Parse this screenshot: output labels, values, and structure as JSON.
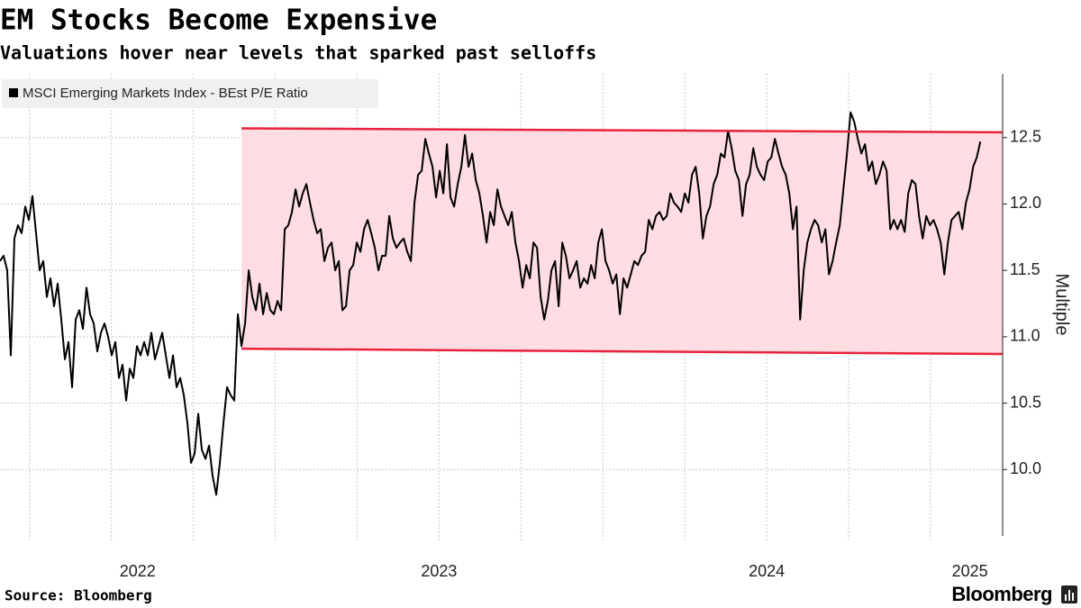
{
  "chart_data": {
    "type": "line",
    "title": "EM Stocks Become Expensive",
    "subtitle": "Valuations hover near levels that sparked past selloffs",
    "source": "Source: Bloomberg",
    "brand": "Bloomberg",
    "ylabel": "Multiple",
    "x": [
      2022.16,
      2022.171,
      2022.182,
      2022.193,
      2022.204,
      2022.215,
      2022.226,
      2022.237,
      2022.248,
      2022.259,
      2022.27,
      2022.281,
      2022.292,
      2022.303,
      2022.314,
      2022.325,
      2022.336,
      2022.347,
      2022.358,
      2022.369,
      2022.38,
      2022.391,
      2022.402,
      2022.413,
      2022.424,
      2022.435,
      2022.446,
      2022.457,
      2022.468,
      2022.479,
      2022.49,
      2022.501,
      2022.512,
      2022.523,
      2022.534,
      2022.545,
      2022.556,
      2022.567,
      2022.578,
      2022.589,
      2022.6,
      2022.611,
      2022.622,
      2022.633,
      2022.644,
      2022.655,
      2022.666,
      2022.677,
      2022.688,
      2022.699,
      2022.71,
      2022.721,
      2022.732,
      2022.743,
      2022.754,
      2022.765,
      2022.776,
      2022.787,
      2022.798,
      2022.809,
      2022.82,
      2022.831,
      2022.842,
      2022.853,
      2022.864,
      2022.875,
      2022.886,
      2022.897,
      2022.908,
      2022.919,
      2022.93,
      2022.941,
      2022.952,
      2022.963,
      2022.974,
      2022.985,
      2022.996,
      2023.007,
      2023.018,
      2023.029,
      2023.04,
      2023.051,
      2023.062,
      2023.073,
      2023.084,
      2023.095,
      2023.106,
      2023.117,
      2023.128,
      2023.139,
      2023.15,
      2023.161,
      2023.172,
      2023.183,
      2023.194,
      2023.205,
      2023.216,
      2023.227,
      2023.238,
      2023.249,
      2023.26,
      2023.271,
      2023.282,
      2023.293,
      2023.304,
      2023.315,
      2023.326,
      2023.337,
      2023.348,
      2023.359,
      2023.37,
      2023.381,
      2023.392,
      2023.403,
      2023.414,
      2023.425,
      2023.436,
      2023.447,
      2023.458,
      2023.469,
      2023.48,
      2023.491,
      2023.502,
      2023.513,
      2023.524,
      2023.535,
      2023.546,
      2023.557,
      2023.568,
      2023.579,
      2023.59,
      2023.601,
      2023.612,
      2023.623,
      2023.634,
      2023.645,
      2023.656,
      2023.667,
      2023.678,
      2023.689,
      2023.7,
      2023.711,
      2023.722,
      2023.733,
      2023.744,
      2023.755,
      2023.766,
      2023.777,
      2023.788,
      2023.799,
      2023.81,
      2023.821,
      2023.832,
      2023.843,
      2023.854,
      2023.865,
      2023.876,
      2023.887,
      2023.898,
      2023.909,
      2023.92,
      2023.931,
      2023.942,
      2023.953,
      2023.964,
      2023.975,
      2023.986,
      2023.997,
      2024.008,
      2024.019,
      2024.03,
      2024.041,
      2024.052,
      2024.063,
      2024.074,
      2024.085,
      2024.096,
      2024.107,
      2024.118,
      2024.129,
      2024.14,
      2024.151,
      2024.162,
      2024.173,
      2024.184,
      2024.195,
      2024.206,
      2024.217,
      2024.228,
      2024.239,
      2024.25,
      2024.261,
      2024.272,
      2024.283,
      2024.294,
      2024.305,
      2024.316,
      2024.327,
      2024.338,
      2024.349,
      2024.36,
      2024.371,
      2024.382,
      2024.393,
      2024.404,
      2024.415,
      2024.426,
      2024.437,
      2024.448,
      2024.459,
      2024.47,
      2024.481,
      2024.492,
      2024.503,
      2024.514,
      2024.525,
      2024.536,
      2024.547,
      2024.558,
      2024.569,
      2024.58,
      2024.591,
      2024.602,
      2024.613,
      2024.624,
      2024.635,
      2024.646,
      2024.657,
      2024.668,
      2024.679,
      2024.69,
      2024.701,
      2024.712,
      2024.723,
      2024.734,
      2024.745,
      2024.756,
      2024.767,
      2024.778,
      2024.789,
      2024.8,
      2024.811,
      2024.822,
      2024.833,
      2024.844,
      2024.855,
      2024.866,
      2024.877,
      2024.888,
      2024.899,
      2024.91,
      2024.921,
      2024.932,
      2024.943,
      2024.954,
      2024.965,
      2024.976,
      2024.987,
      2024.998,
      2025.009,
      2025.02,
      2025.031,
      2025.042,
      2025.053,
      2025.064,
      2025.075,
      2025.086,
      2025.097,
      2025.108,
      2025.119,
      2025.13,
      2025.141,
      2025.152
    ],
    "series": [
      {
        "name": "MSCI Emerging Markets Index - BEst P/E Ratio",
        "color": "#000000",
        "values": [
          11.57,
          11.61,
          11.5,
          10.86,
          11.74,
          11.84,
          11.78,
          11.98,
          11.88,
          12.06,
          11.78,
          11.5,
          11.57,
          11.3,
          11.44,
          11.23,
          11.4,
          11.13,
          10.83,
          10.96,
          10.62,
          11.13,
          11.2,
          11.06,
          11.37,
          11.17,
          11.1,
          10.89,
          11.03,
          11.1,
          11.0,
          10.86,
          10.96,
          10.69,
          10.79,
          10.52,
          10.76,
          10.69,
          10.93,
          10.86,
          10.96,
          10.86,
          11.03,
          10.83,
          10.93,
          11.03,
          10.86,
          10.69,
          10.86,
          10.62,
          10.69,
          10.56,
          10.35,
          10.05,
          10.12,
          10.42,
          10.15,
          10.08,
          10.18,
          9.95,
          9.81,
          10.05,
          10.35,
          10.62,
          10.56,
          10.52,
          11.17,
          10.93,
          11.1,
          11.5,
          11.3,
          11.2,
          11.4,
          11.17,
          11.33,
          11.2,
          11.17,
          11.27,
          11.2,
          11.81,
          11.84,
          11.94,
          12.11,
          11.98,
          12.08,
          12.15,
          12.01,
          11.88,
          11.78,
          11.81,
          11.57,
          11.67,
          11.71,
          11.5,
          11.57,
          11.2,
          11.23,
          11.5,
          11.54,
          11.71,
          11.64,
          11.81,
          11.88,
          11.78,
          11.67,
          11.5,
          11.61,
          11.61,
          11.91,
          11.74,
          11.67,
          11.71,
          11.74,
          11.64,
          11.57,
          12.01,
          12.22,
          12.25,
          12.49,
          12.38,
          12.28,
          12.05,
          12.25,
          12.08,
          12.45,
          12.05,
          11.98,
          12.15,
          12.28,
          12.52,
          12.28,
          12.38,
          12.18,
          12.08,
          11.91,
          11.71,
          11.94,
          11.84,
          12.11,
          11.98,
          11.91,
          11.84,
          11.94,
          11.71,
          11.57,
          11.37,
          11.54,
          11.44,
          11.71,
          11.67,
          11.3,
          11.13,
          11.27,
          11.5,
          11.57,
          11.23,
          11.71,
          11.61,
          11.44,
          11.5,
          11.57,
          11.37,
          11.44,
          11.4,
          11.54,
          11.44,
          11.71,
          11.81,
          11.57,
          11.5,
          11.4,
          11.47,
          11.17,
          11.44,
          11.37,
          11.47,
          11.57,
          11.54,
          11.61,
          11.64,
          11.88,
          11.81,
          11.91,
          11.94,
          11.88,
          11.91,
          12.08,
          12.01,
          11.98,
          11.94,
          12.08,
          12.01,
          12.22,
          12.28,
          12.08,
          11.74,
          11.91,
          11.98,
          12.15,
          12.22,
          12.38,
          12.35,
          12.55,
          12.42,
          12.25,
          12.18,
          11.91,
          12.15,
          12.22,
          12.42,
          12.28,
          12.22,
          12.18,
          12.32,
          12.35,
          12.49,
          12.38,
          12.28,
          12.22,
          12.08,
          11.81,
          11.98,
          11.13,
          11.5,
          11.71,
          11.81,
          11.88,
          11.84,
          11.71,
          11.81,
          11.47,
          11.57,
          11.71,
          11.84,
          12.11,
          12.38,
          12.69,
          12.62,
          12.49,
          12.38,
          12.45,
          12.25,
          12.32,
          12.15,
          12.22,
          12.32,
          12.25,
          11.81,
          11.88,
          11.81,
          11.88,
          11.79,
          12.08,
          12.18,
          12.15,
          11.91,
          11.74,
          11.91,
          11.84,
          11.88,
          11.81,
          11.71,
          11.47,
          11.71,
          11.88,
          11.91,
          11.94,
          11.81,
          12.01,
          12.11,
          12.28,
          12.35,
          12.47
        ]
      }
    ],
    "band": {
      "x": [
        2022.897,
        2025.22
      ],
      "upper": [
        12.57,
        12.54
      ],
      "lower": [
        10.91,
        10.87
      ],
      "color": "#e8233a",
      "fill": "#ffdde3"
    },
    "xlim": [
      2022.16,
      2025.22
    ],
    "xticks": [
      {
        "value": 2022.58,
        "label": "2022"
      },
      {
        "value": 2023.5,
        "label": "2023"
      },
      {
        "value": 2024.5,
        "label": "2024"
      },
      {
        "value": 2025.12,
        "label": "2025"
      }
    ],
    "xgrid": [
      2022.25,
      2022.5,
      2022.75,
      2023,
      2023.25,
      2023.5,
      2023.75,
      2024,
      2024.25,
      2024.5,
      2024.75,
      2025
    ],
    "ylim": [
      9.5,
      12.98
    ],
    "yticks": [
      {
        "value": 10,
        "label": "10.0"
      },
      10.5,
      {
        "value": 11,
        "label": "11.0"
      },
      11.5,
      {
        "value": 12,
        "label": "12.0"
      },
      12.5
    ],
    "grid": true
  }
}
